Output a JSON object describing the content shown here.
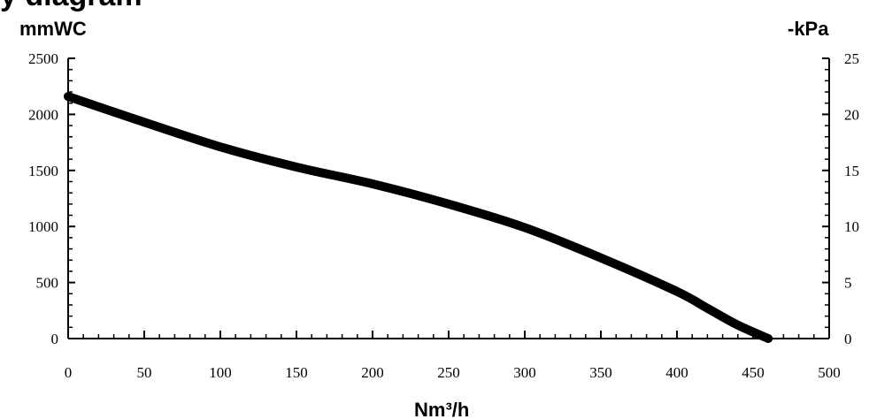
{
  "chart_data": {
    "type": "line",
    "title": "y diagram",
    "xlabel": "Nm³/h",
    "ylabel": "mmWC",
    "y2label": "-kPa",
    "xlim": [
      0,
      500
    ],
    "ylim": [
      0,
      2500
    ],
    "y2lim": [
      0,
      25
    ],
    "x_ticks": [
      "0",
      "50",
      "100",
      "150",
      "200",
      "250",
      "300",
      "350",
      "400",
      "450",
      "500"
    ],
    "y_ticks": [
      "0",
      "500",
      "1000",
      "1500",
      "2000",
      "2500"
    ],
    "y2_ticks": [
      "0",
      "5",
      "10",
      "15",
      "20",
      "25"
    ],
    "grid": false,
    "series": [
      {
        "x": [
          0,
          50,
          100,
          150,
          200,
          250,
          300,
          350,
          400,
          420,
          440,
          460
        ],
        "y": [
          2160,
          1930,
          1710,
          1530,
          1380,
          1200,
          990,
          720,
          420,
          270,
          120,
          0
        ],
        "color": "#000000"
      }
    ]
  }
}
